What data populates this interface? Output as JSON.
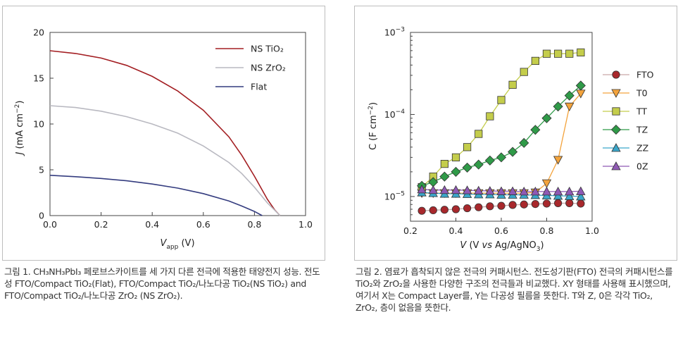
{
  "chart_data": [
    {
      "type": "line",
      "xlabel": "V_app (V)",
      "xlabel_main": "V",
      "xlabel_sub": "app",
      "xlabel_unit": " (V)",
      "ylabel": "J (mA cm⁻²)",
      "xlim": [
        0.0,
        1.0
      ],
      "ylim": [
        0,
        20
      ],
      "xticks": [
        "0.0",
        "0.2",
        "0.4",
        "0.6",
        "0.8",
        "1.0"
      ],
      "yticks": [
        "0",
        "5",
        "10",
        "15",
        "20"
      ],
      "legend_position": "top-right",
      "legend_labels": [
        "NS TiO₂",
        "NS ZrO₂",
        "Flat"
      ],
      "series": [
        {
          "name": "NS TiO₂",
          "color": "#a31e22",
          "x": [
            0.0,
            0.1,
            0.2,
            0.3,
            0.4,
            0.5,
            0.6,
            0.7,
            0.75,
            0.8,
            0.85,
            0.88,
            0.9
          ],
          "y": [
            18.0,
            17.7,
            17.2,
            16.4,
            15.2,
            13.6,
            11.5,
            8.6,
            6.6,
            4.3,
            1.8,
            0.6,
            0.0
          ]
        },
        {
          "name": "NS ZrO₂",
          "color": "#b9b9c1",
          "x": [
            0.0,
            0.1,
            0.2,
            0.3,
            0.4,
            0.5,
            0.6,
            0.7,
            0.75,
            0.8,
            0.85,
            0.9
          ],
          "y": [
            12.0,
            11.8,
            11.4,
            10.8,
            10.0,
            9.0,
            7.6,
            5.8,
            4.6,
            3.1,
            1.4,
            0.0
          ]
        },
        {
          "name": "Flat",
          "color": "#343c7f",
          "x": [
            0.0,
            0.1,
            0.2,
            0.3,
            0.4,
            0.5,
            0.6,
            0.7,
            0.75,
            0.8,
            0.83
          ],
          "y": [
            4.4,
            4.25,
            4.05,
            3.8,
            3.45,
            3.0,
            2.4,
            1.6,
            1.05,
            0.45,
            0.0
          ]
        }
      ]
    },
    {
      "type": "scatter",
      "xlabel": "V (V vs Ag/AgNO₃)",
      "ylabel": "C (F cm⁻²)",
      "xlim": [
        0.2,
        1.0
      ],
      "ylim": [
        5e-06,
        0.001
      ],
      "yscale": "log",
      "xticks": [
        "0.2",
        "0.4",
        "0.6",
        "0.8",
        "1.0"
      ],
      "yticks": [
        {
          "base": "10",
          "exp": "-5",
          "value": 1e-05
        },
        {
          "base": "10",
          "exp": "-4",
          "value": 0.0001
        },
        {
          "base": "10",
          "exp": "-3",
          "value": 0.001
        }
      ],
      "legend_position": "right",
      "series": [
        {
          "name": "FTO",
          "marker": "circle",
          "fill": "#a8282c",
          "line": "#c9a7a7",
          "x": [
            0.25,
            0.3,
            0.35,
            0.4,
            0.45,
            0.5,
            0.55,
            0.6,
            0.65,
            0.7,
            0.75,
            0.8,
            0.85,
            0.9,
            0.95
          ],
          "y": [
            6.7e-06,
            6.8e-06,
            6.9e-06,
            7e-06,
            7.2e-06,
            7.4e-06,
            7.6e-06,
            7.7e-06,
            7.9e-06,
            8e-06,
            8.1e-06,
            8.2e-06,
            8.3e-06,
            8.3e-06,
            8.2e-06
          ]
        },
        {
          "name": "T0",
          "marker": "triangle-down",
          "fill": "#f3a33c",
          "line": "#f3a33c",
          "x": [
            0.25,
            0.3,
            0.35,
            0.4,
            0.45,
            0.5,
            0.55,
            0.6,
            0.65,
            0.7,
            0.75,
            0.8,
            0.85,
            0.9,
            0.95
          ],
          "y": [
            1.1e-05,
            1.1e-05,
            1.1e-05,
            1.1e-05,
            1.1e-05,
            1.1e-05,
            1.1e-05,
            1.1e-05,
            1.1e-05,
            1.1e-05,
            1.12e-05,
            1.45e-05,
            2.8e-05,
            0.000125,
            0.00018
          ]
        },
        {
          "name": "TT",
          "marker": "square",
          "fill": "#c4cd4b",
          "line": "#c4cd4b",
          "x": [
            0.25,
            0.3,
            0.35,
            0.4,
            0.45,
            0.5,
            0.55,
            0.6,
            0.65,
            0.7,
            0.75,
            0.8,
            0.85,
            0.9,
            0.95
          ],
          "y": [
            1.3e-05,
            1.75e-05,
            2.5e-05,
            3e-05,
            4e-05,
            5.8e-05,
            9.5e-05,
            0.00015,
            0.00023,
            0.00033,
            0.00045,
            0.00055,
            0.00055,
            0.00055,
            0.00057
          ]
        },
        {
          "name": "TZ",
          "marker": "diamond",
          "fill": "#2f9a48",
          "line": "#2f9a48",
          "x": [
            0.25,
            0.3,
            0.35,
            0.4,
            0.45,
            0.5,
            0.55,
            0.6,
            0.65,
            0.7,
            0.75,
            0.8,
            0.85,
            0.9,
            0.95
          ],
          "y": [
            1.35e-05,
            1.5e-05,
            1.75e-05,
            2e-05,
            2.25e-05,
            2.45e-05,
            2.75e-05,
            3e-05,
            3.5e-05,
            4.5e-05,
            6.5e-05,
            9e-05,
            0.000125,
            0.00017,
            0.000225
          ]
        },
        {
          "name": "ZZ",
          "marker": "triangle-up",
          "fill": "#3aa6c9",
          "line": "#3aa6c9",
          "x": [
            0.25,
            0.3,
            0.35,
            0.4,
            0.45,
            0.5,
            0.55,
            0.6,
            0.65,
            0.7,
            0.75,
            0.8,
            0.85,
            0.9,
            0.95
          ],
          "y": [
            1.12e-05,
            1.1e-05,
            1.08e-05,
            1.08e-05,
            1.07e-05,
            1.06e-05,
            1.06e-05,
            1.05e-05,
            1.05e-05,
            1.05e-05,
            1.04e-05,
            1.03e-05,
            1.02e-05,
            1.01e-05,
            1e-05
          ]
        },
        {
          "name": "0Z",
          "marker": "triangle-up",
          "fill": "#8f59b4",
          "line": "#8f59b4",
          "x": [
            0.25,
            0.3,
            0.35,
            0.4,
            0.45,
            0.5,
            0.55,
            0.6,
            0.65,
            0.7,
            0.75,
            0.8,
            0.85,
            0.9,
            0.95
          ],
          "y": [
            1.22e-05,
            1.2e-05,
            1.2e-05,
            1.2e-05,
            1.19e-05,
            1.18e-05,
            1.17e-05,
            1.16e-05,
            1.16e-05,
            1.15e-05,
            1.15e-05,
            1.15e-05,
            1.15e-05,
            1.15e-05,
            1.16e-05
          ]
        }
      ]
    }
  ],
  "captions": {
    "fig1": "그림 1. CH₃NH₃PbI₃ 페로브스카이트를 세 가지 다른 전극에 적용한 태양전지 성능. 전도성 FTO/Compact TiO₂(Flat), FTO/Compact TiO₂/나노다공 TiO₂(NS TiO₂) and FTO/Compact TiO₂/나노다공 ZrO₂ (NS ZrO₂).",
    "fig2": "그림 2. 염료가 흡착되지 않은 전극의 커패시턴스. 전도성기판(FTO) 전극의 커패시턴스를 TiO₂와 ZrO₂을 사용한 다양한 구조의 전극들과 비교했다. XY 형태를 사용해 표시했으며, 여기서 X는 Compact Layer를, Y는 다공성 필름을 뜻한다. T와 Z, 0은 각각 TiO₂, ZrO₂, 층이 없음을 뜻한다."
  }
}
